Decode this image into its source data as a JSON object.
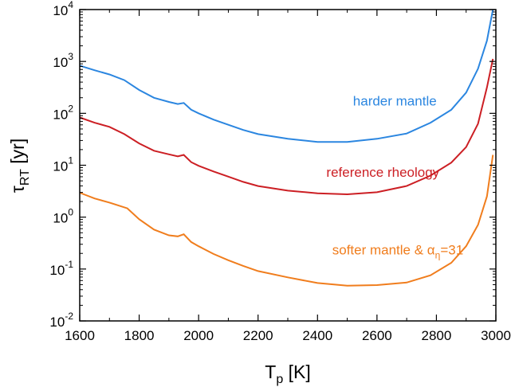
{
  "chart_data": {
    "type": "line",
    "title": "",
    "xlabel": {
      "main": "T",
      "sub": "p",
      "suffix": " [K]"
    },
    "ylabel": {
      "main": "τ",
      "sub": "RT",
      "suffix": " [yr]"
    },
    "xlim": [
      1600,
      3000
    ],
    "ylim_log10": [
      -2,
      4
    ],
    "y_scale": "log",
    "x_ticks": [
      1600,
      1800,
      2000,
      2200,
      2400,
      2600,
      2800,
      3000
    ],
    "y_ticks": [
      {
        "base": "10",
        "exp": "-2"
      },
      {
        "base": "10",
        "exp": "-1"
      },
      {
        "base": "10",
        "exp": "0"
      },
      {
        "base": "10",
        "exp": "1"
      },
      {
        "base": "10",
        "exp": "2"
      },
      {
        "base": "10",
        "exp": "3"
      },
      {
        "base": "10",
        "exp": "4"
      }
    ],
    "grid": false,
    "series": [
      {
        "name": "harder mantle",
        "label_parts": [
          {
            "t": "harder mantle"
          }
        ],
        "color": "#2b86e0",
        "x": [
          1600,
          1650,
          1700,
          1750,
          1800,
          1850,
          1900,
          1930,
          1950,
          1975,
          2000,
          2050,
          2100,
          2150,
          2200,
          2300,
          2400,
          2500,
          2600,
          2700,
          2780,
          2850,
          2900,
          2940,
          2970,
          2990
        ],
        "log_y": [
          2.92,
          2.83,
          2.75,
          2.64,
          2.45,
          2.3,
          2.22,
          2.18,
          2.2,
          2.07,
          2.0,
          1.88,
          1.78,
          1.68,
          1.6,
          1.51,
          1.45,
          1.45,
          1.51,
          1.61,
          1.82,
          2.07,
          2.4,
          2.86,
          3.4,
          4.0
        ]
      },
      {
        "name": "reference rheology",
        "label_parts": [
          {
            "t": "reference rheology"
          }
        ],
        "color": "#cc1f24",
        "x": [
          1600,
          1650,
          1700,
          1750,
          1800,
          1850,
          1900,
          1930,
          1950,
          1975,
          2000,
          2050,
          2100,
          2150,
          2200,
          2300,
          2400,
          2500,
          2600,
          2700,
          2780,
          2850,
          2900,
          2940,
          2970,
          2990
        ],
        "log_y": [
          1.92,
          1.82,
          1.74,
          1.6,
          1.42,
          1.28,
          1.21,
          1.17,
          1.2,
          1.06,
          0.99,
          0.88,
          0.78,
          0.68,
          0.6,
          0.51,
          0.46,
          0.44,
          0.48,
          0.6,
          0.8,
          1.05,
          1.35,
          1.8,
          2.5,
          3.05
        ]
      },
      {
        "name": "softer mantle & αη=31",
        "label_parts": [
          {
            "t": "softer mantle & α"
          },
          {
            "t": "η",
            "sub": true
          },
          {
            "t": "=31"
          }
        ],
        "color": "#f07d1d",
        "x": [
          1600,
          1650,
          1700,
          1760,
          1800,
          1850,
          1900,
          1930,
          1950,
          1975,
          2000,
          2050,
          2100,
          2150,
          2200,
          2300,
          2400,
          2500,
          2600,
          2700,
          2780,
          2850,
          2900,
          2940,
          2970,
          2990
        ],
        "log_y": [
          0.47,
          0.36,
          0.28,
          0.17,
          -0.04,
          -0.24,
          -0.35,
          -0.37,
          -0.33,
          -0.48,
          -0.56,
          -0.71,
          -0.83,
          -0.94,
          -1.04,
          -1.16,
          -1.27,
          -1.32,
          -1.31,
          -1.26,
          -1.12,
          -0.88,
          -0.56,
          -0.15,
          0.4,
          1.2
        ]
      }
    ],
    "annotations": [
      {
        "series": 0,
        "text_parts": [
          {
            "t": "harder mantle"
          }
        ],
        "anchor_x": 2660,
        "anchor_log_y": 2.15
      },
      {
        "series": 1,
        "text_parts": [
          {
            "t": "reference rheology"
          }
        ],
        "anchor_x": 2620,
        "anchor_log_y": 0.78
      },
      {
        "series": 2,
        "text_parts": [
          {
            "t": "softer mantle & α"
          },
          {
            "t": "η",
            "sub": true
          },
          {
            "t": "=31"
          }
        ],
        "anchor_x": 2670,
        "anchor_log_y": -0.72
      }
    ]
  }
}
